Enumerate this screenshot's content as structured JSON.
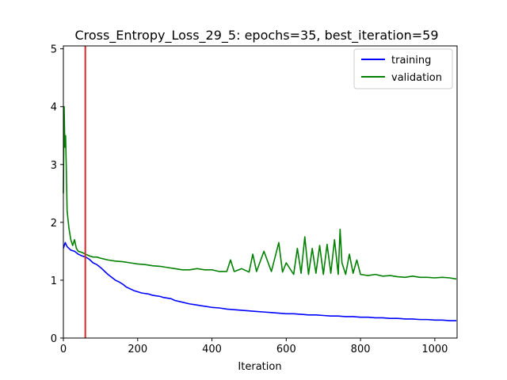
{
  "chart_data": {
    "type": "line",
    "title": "Cross_Entropy_Loss_29_5: epochs=35, best_iteration=59",
    "xlabel": "Iteration",
    "ylabel": "",
    "xlim": [
      0,
      1060
    ],
    "ylim": [
      0,
      5.05
    ],
    "x_ticks": [
      0,
      200,
      400,
      600,
      800,
      1000
    ],
    "y_ticks": [
      0,
      1,
      2,
      3,
      4,
      5
    ],
    "grid": false,
    "legend_position": "upper right",
    "best_iteration": 59,
    "best_iteration_color": "#d62728",
    "series": [
      {
        "name": "training",
        "color": "#0000ff",
        "x": [
          0,
          5,
          10,
          20,
          30,
          40,
          50,
          60,
          70,
          80,
          90,
          100,
          110,
          120,
          130,
          140,
          150,
          160,
          170,
          180,
          190,
          200,
          210,
          220,
          230,
          240,
          250,
          260,
          270,
          280,
          290,
          300,
          320,
          340,
          360,
          380,
          400,
          420,
          440,
          460,
          480,
          500,
          520,
          540,
          560,
          580,
          600,
          620,
          640,
          660,
          680,
          700,
          720,
          740,
          760,
          780,
          800,
          820,
          840,
          860,
          880,
          900,
          920,
          940,
          960,
          980,
          1000,
          1020,
          1040,
          1058
        ],
        "values": [
          1.55,
          1.65,
          1.58,
          1.52,
          1.5,
          1.45,
          1.42,
          1.4,
          1.36,
          1.3,
          1.27,
          1.22,
          1.16,
          1.1,
          1.05,
          1.0,
          0.97,
          0.93,
          0.88,
          0.85,
          0.82,
          0.8,
          0.78,
          0.77,
          0.76,
          0.74,
          0.73,
          0.72,
          0.7,
          0.69,
          0.68,
          0.65,
          0.62,
          0.59,
          0.57,
          0.55,
          0.53,
          0.52,
          0.5,
          0.49,
          0.48,
          0.47,
          0.46,
          0.45,
          0.44,
          0.43,
          0.42,
          0.42,
          0.41,
          0.4,
          0.4,
          0.39,
          0.38,
          0.38,
          0.37,
          0.37,
          0.36,
          0.36,
          0.35,
          0.35,
          0.34,
          0.34,
          0.33,
          0.33,
          0.32,
          0.32,
          0.31,
          0.31,
          0.3,
          0.3
        ]
      },
      {
        "name": "validation",
        "color": "#008000",
        "x": [
          0,
          2,
          4,
          6,
          8,
          10,
          15,
          20,
          25,
          30,
          35,
          40,
          50,
          60,
          70,
          80,
          90,
          100,
          120,
          140,
          160,
          180,
          200,
          220,
          240,
          260,
          280,
          300,
          320,
          340,
          360,
          380,
          400,
          420,
          440,
          450,
          460,
          480,
          500,
          510,
          520,
          540,
          560,
          580,
          590,
          600,
          620,
          630,
          640,
          650,
          660,
          670,
          680,
          690,
          700,
          710,
          720,
          730,
          740,
          745,
          750,
          760,
          770,
          780,
          790,
          800,
          820,
          840,
          860,
          880,
          900,
          920,
          940,
          960,
          980,
          1000,
          1020,
          1040,
          1058
        ],
        "values": [
          2.5,
          4.0,
          3.3,
          3.5,
          2.9,
          2.2,
          1.9,
          1.7,
          1.6,
          1.7,
          1.55,
          1.5,
          1.48,
          1.45,
          1.42,
          1.4,
          1.4,
          1.38,
          1.35,
          1.33,
          1.32,
          1.3,
          1.28,
          1.27,
          1.25,
          1.24,
          1.22,
          1.2,
          1.18,
          1.18,
          1.2,
          1.18,
          1.18,
          1.15,
          1.15,
          1.35,
          1.15,
          1.2,
          1.14,
          1.45,
          1.15,
          1.5,
          1.15,
          1.65,
          1.14,
          1.3,
          1.1,
          1.55,
          1.12,
          1.75,
          1.1,
          1.55,
          1.12,
          1.6,
          1.1,
          1.62,
          1.12,
          1.7,
          1.1,
          1.88,
          1.3,
          1.1,
          1.45,
          1.12,
          1.35,
          1.1,
          1.08,
          1.1,
          1.07,
          1.08,
          1.06,
          1.05,
          1.07,
          1.05,
          1.05,
          1.04,
          1.05,
          1.04,
          1.02
        ]
      }
    ]
  }
}
